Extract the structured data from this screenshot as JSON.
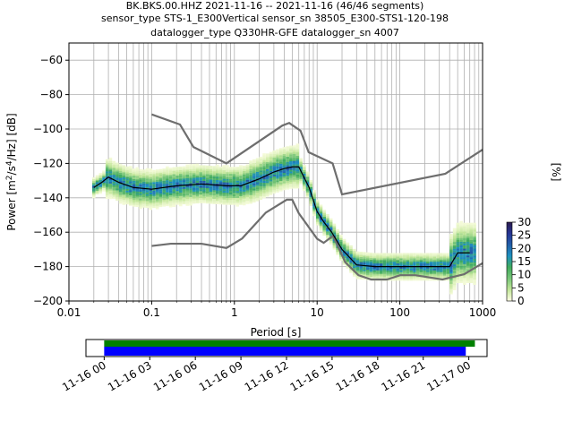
{
  "title_lines": [
    "BK.BKS.00.HHZ   2021-11-16 -- 2021-11-16  (46/46 segments)",
    "sensor_type STS-1_E300Vertical sensor_sn 38505_E300-STS1-120-198",
    "datalogger_type Q330HR-GFE datalogger_sn 4007"
  ],
  "chart_data": [
    {
      "type": "heatmap",
      "title": "BK.BKS.00.HHZ   2021-11-16 -- 2021-11-16  (46/46 segments)",
      "xlabel": "Period [s]",
      "ylabel": "Power [m²/s⁴/Hz] [dB]",
      "xscale": "log",
      "xlim": [
        0.01,
        1000
      ],
      "ylim": [
        -200,
        -50
      ],
      "x_ticks": [
        0.01,
        0.1,
        1,
        10,
        100,
        1000
      ],
      "x_tick_labels": [
        "0.01",
        "0.1",
        "1",
        "10",
        "100",
        "1000"
      ],
      "y_ticks": [
        -200,
        -180,
        -160,
        -140,
        -120,
        -100,
        -80,
        -60
      ],
      "y_tick_labels": [
        "−200",
        "−180",
        "−160",
        "−140",
        "−120",
        "−100",
        "−80",
        "−60"
      ],
      "grid": true,
      "colorbar": {
        "label": "[%]",
        "min": 0,
        "max": 30,
        "ticks": [
          0,
          5,
          10,
          15,
          20,
          25,
          30
        ],
        "colors": [
          "#ffffe5",
          "#c2e699",
          "#78c679",
          "#41ab5d",
          "#1d91c0",
          "#225ea8",
          "#253494",
          "#2c1b4d"
        ]
      },
      "mean_curve": {
        "color": "#000000",
        "x": [
          0.02,
          0.025,
          0.03,
          0.04,
          0.06,
          0.1,
          0.2,
          0.4,
          0.8,
          1.2,
          2,
          3,
          4,
          5,
          6,
          8,
          10,
          12,
          15,
          20,
          30,
          50,
          100,
          200,
          400,
          500,
          700
        ],
        "y": [
          -134,
          -131,
          -128,
          -131,
          -134,
          -135,
          -133,
          -132,
          -133,
          -133,
          -129,
          -125,
          -123,
          -122,
          -122,
          -134,
          -148,
          -154,
          -160,
          -170,
          -179,
          -180,
          -180,
          -180,
          -180,
          -172,
          -172
        ]
      },
      "noise_models": [
        {
          "name": "upper",
          "color": "#6e6e6e",
          "x": [
            0.1,
            0.22,
            0.32,
            0.8,
            3.8,
            4.6,
            6.3,
            7.9,
            15.4,
            20,
            354.8,
            1000
          ],
          "y": [
            -91.5,
            -97.4,
            -110.5,
            -120,
            -98,
            -96.5,
            -101,
            -113.5,
            -120,
            -138,
            -126,
            -112
          ]
        },
        {
          "name": "lower",
          "color": "#6e6e6e",
          "x": [
            0.1,
            0.17,
            0.4,
            0.8,
            1.24,
            2.4,
            4.3,
            5,
            6,
            10,
            12,
            15.6,
            21.9,
            31.6,
            45,
            70,
            101,
            154,
            328,
            600,
            1000
          ],
          "y": [
            -168,
            -166.7,
            -166.7,
            -169.2,
            -163.7,
            -148.6,
            -141.1,
            -141.1,
            -149,
            -163.8,
            -166.2,
            -162.1,
            -177.5,
            -185,
            -187.5,
            -187.5,
            -185,
            -185,
            -187.5,
            -184.4,
            -178
          ]
        }
      ]
    },
    {
      "type": "bar",
      "title": "",
      "x_tick_labels": [
        "11-16 00",
        "11-16 03",
        "11-16 06",
        "11-16 09",
        "11-16 12",
        "11-16 15",
        "11-16 18",
        "11-16 21",
        "11-17 00"
      ],
      "x_ticks_hours": [
        0,
        3,
        6,
        9,
        12,
        15,
        18,
        21,
        24
      ],
      "xlim_hours": [
        -1.2,
        25.2
      ],
      "bars": [
        {
          "name": "data",
          "color": "#008000",
          "start_hour": 0,
          "end_hour": 24.4
        },
        {
          "name": "segments",
          "color": "#0000ff",
          "start_hour": 0,
          "end_hour": 23.8
        }
      ]
    }
  ]
}
